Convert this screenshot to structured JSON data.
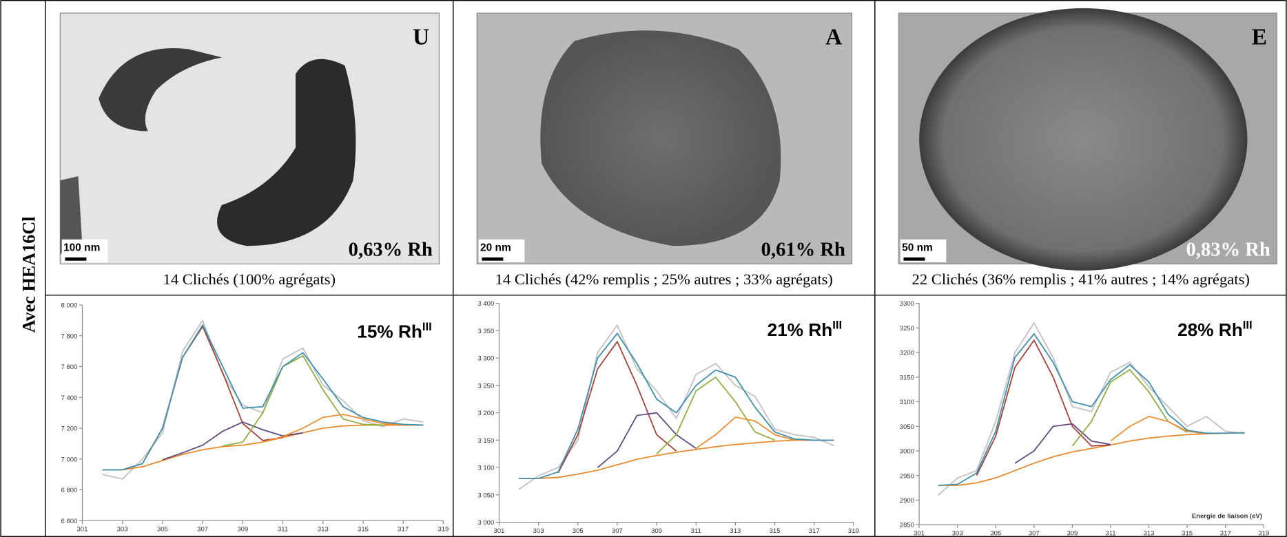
{
  "row_label": "Avec HEA16Cl",
  "panels": [
    {
      "letter": "U",
      "loading": "0,63% Rh",
      "scale_bar": "100 nm",
      "caption": "14 Clichés (100% agrégats)"
    },
    {
      "letter": "A",
      "loading": "0,61% Rh",
      "scale_bar": "20 nm",
      "caption": "14 Clichés (42% remplis ; 25% autres ; 33% agrégats)"
    },
    {
      "letter": "E",
      "loading": "0,83% Rh",
      "scale_bar": "50 nm",
      "caption": "22 Clichés (36% remplis ; 41% autres ; 14% agrégats)"
    }
  ],
  "chart_data": [
    {
      "type": "line",
      "annotation": "15% Rh",
      "annotation_sup": "III",
      "x": [
        302,
        303,
        304,
        305,
        306,
        307,
        308,
        309,
        310,
        311,
        312,
        313,
        314,
        315,
        316,
        317,
        318
      ],
      "xlim": [
        301,
        319
      ],
      "xticks": [
        301,
        303,
        305,
        307,
        309,
        311,
        313,
        315,
        317,
        319
      ],
      "ylim": [
        6600,
        8000
      ],
      "yticks": [
        {
          "value": 6600,
          "label": "6 600"
        },
        {
          "value": 6800,
          "label": "6 800"
        },
        {
          "value": 7000,
          "label": "7 000"
        },
        {
          "value": 7200,
          "label": "7 200"
        },
        {
          "value": 7400,
          "label": "7 400"
        },
        {
          "value": 7600,
          "label": "7 600"
        },
        {
          "value": 7800,
          "label": "7 800"
        },
        {
          "value": 8000,
          "label": "8 000"
        }
      ],
      "series": [
        {
          "color": "#c4c4c4",
          "values": [
            6900,
            6870,
            7000,
            7170,
            7700,
            7900,
            7550,
            7350,
            7300,
            7650,
            7720,
            7480,
            7380,
            7250,
            7210,
            7260,
            7240
          ]
        },
        {
          "color": "#e8892b",
          "values": [
            6930,
            6930,
            6950,
            6990,
            7030,
            7060,
            7080,
            7090,
            7110,
            7140,
            7170,
            7200,
            7215,
            7220,
            7220,
            7220,
            7220
          ]
        },
        {
          "color": "#a8403a",
          "values": [
            null,
            6930,
            6970,
            7200,
            7660,
            7860,
            7560,
            7230,
            7120,
            7140,
            null,
            null,
            null,
            null,
            null,
            null,
            null
          ]
        },
        {
          "color": "#5e4a80",
          "values": [
            null,
            null,
            null,
            6995,
            7040,
            7090,
            7180,
            7240,
            7190,
            7150,
            7170,
            null,
            null,
            null,
            null,
            null,
            null
          ]
        },
        {
          "color": "#8fae3e",
          "values": [
            null,
            null,
            null,
            null,
            null,
            null,
            7085,
            7110,
            7300,
            7600,
            7670,
            7450,
            7260,
            7225,
            7220,
            null,
            null
          ]
        },
        {
          "color": "#ee8f30",
          "values": [
            null,
            null,
            null,
            null,
            null,
            null,
            null,
            null,
            7110,
            7145,
            7200,
            7270,
            7290,
            7260,
            7230,
            7220,
            null
          ]
        },
        {
          "color": "#3f8fae",
          "values": [
            6930,
            6930,
            6970,
            7200,
            7660,
            7870,
            7600,
            7330,
            7340,
            7600,
            7690,
            7520,
            7340,
            7270,
            7240,
            7225,
            7220
          ]
        }
      ]
    },
    {
      "type": "line",
      "annotation": "21% Rh",
      "annotation_sup": "III",
      "x": [
        302,
        303,
        304,
        305,
        306,
        307,
        308,
        309,
        310,
        311,
        312,
        313,
        314,
        315,
        316,
        317,
        318
      ],
      "xlim": [
        301,
        319
      ],
      "xticks": [
        301,
        303,
        305,
        307,
        309,
        311,
        313,
        315,
        317,
        319
      ],
      "ylim": [
        3000,
        3400
      ],
      "yticks": [
        {
          "value": 3000,
          "label": "3 000"
        },
        {
          "value": 3050,
          "label": "3 050"
        },
        {
          "value": 3100,
          "label": "3 100"
        },
        {
          "value": 3150,
          "label": "3 150"
        },
        {
          "value": 3200,
          "label": "3 200"
        },
        {
          "value": 3250,
          "label": "3 250"
        },
        {
          "value": 3300,
          "label": "3 300"
        },
        {
          "value": 3350,
          "label": "3 350"
        },
        {
          "value": 3400,
          "label": "3 400"
        }
      ],
      "series": [
        {
          "color": "#c4c4c4",
          "values": [
            3060,
            3085,
            3100,
            3150,
            3310,
            3360,
            3280,
            3240,
            3190,
            3270,
            3290,
            3250,
            3230,
            3170,
            3160,
            3155,
            3140
          ]
        },
        {
          "color": "#e8892b",
          "values": [
            3080,
            3080,
            3082,
            3088,
            3095,
            3105,
            3115,
            3122,
            3128,
            3133,
            3138,
            3142,
            3145,
            3148,
            3150,
            3150,
            3150
          ]
        },
        {
          "color": "#a8403a",
          "values": [
            null,
            null,
            3090,
            3160,
            3280,
            3330,
            3250,
            3160,
            3130,
            null,
            null,
            null,
            null,
            null,
            null,
            null,
            null
          ]
        },
        {
          "color": "#5e4a80",
          "values": [
            null,
            null,
            null,
            null,
            3100,
            3130,
            3195,
            3200,
            3160,
            3135,
            null,
            null,
            null,
            null,
            null,
            null,
            null
          ]
        },
        {
          "color": "#8fae3e",
          "values": [
            null,
            null,
            null,
            null,
            null,
            null,
            null,
            3125,
            3160,
            3240,
            3265,
            3220,
            3165,
            3150,
            null,
            null,
            null
          ]
        },
        {
          "color": "#ee8f30",
          "values": [
            null,
            null,
            null,
            null,
            null,
            null,
            null,
            null,
            null,
            3135,
            3160,
            3192,
            3185,
            3160,
            3150,
            null,
            null
          ]
        },
        {
          "color": "#3f8fae",
          "values": [
            3080,
            3080,
            3092,
            3170,
            3300,
            3345,
            3290,
            3225,
            3200,
            3250,
            3278,
            3265,
            3210,
            3165,
            3152,
            3150,
            3150
          ]
        }
      ]
    },
    {
      "type": "line",
      "annotation": "28% Rh",
      "annotation_sup": "III",
      "x_label": "Energie de liaison (eV)",
      "x": [
        302,
        303,
        304,
        305,
        306,
        307,
        308,
        309,
        310,
        311,
        312,
        313,
        314,
        315,
        316,
        317,
        318
      ],
      "xlim": [
        301,
        319
      ],
      "xticks": [
        301,
        303,
        305,
        307,
        309,
        311,
        313,
        315,
        317,
        319
      ],
      "ylim": [
        2850,
        3300
      ],
      "yticks": [
        2850,
        2900,
        2950,
        3000,
        3050,
        3100,
        3150,
        3200,
        3250,
        3300
      ],
      "series": [
        {
          "color": "#c4c4c4",
          "values": [
            2910,
            2945,
            2960,
            3060,
            3200,
            3260,
            3190,
            3090,
            3080,
            3160,
            3180,
            3130,
            3090,
            3050,
            3070,
            3040,
            3035
          ]
        },
        {
          "color": "#e8892b",
          "values": [
            2930,
            2930,
            2935,
            2945,
            2960,
            2975,
            2988,
            2998,
            3005,
            3012,
            3020,
            3026,
            3030,
            3033,
            3035,
            3036,
            3037
          ]
        },
        {
          "color": "#a8403a",
          "values": [
            null,
            null,
            2950,
            3030,
            3170,
            3225,
            3150,
            3050,
            3010,
            3012,
            null,
            null,
            null,
            null,
            null,
            null,
            null
          ]
        },
        {
          "color": "#5e4a80",
          "values": [
            null,
            null,
            null,
            null,
            2975,
            3000,
            3050,
            3055,
            3020,
            3013,
            null,
            null,
            null,
            null,
            null,
            null,
            null
          ]
        },
        {
          "color": "#8fae3e",
          "values": [
            null,
            null,
            null,
            null,
            null,
            null,
            null,
            3010,
            3060,
            3140,
            3165,
            3120,
            3060,
            3038,
            null,
            null,
            null
          ]
        },
        {
          "color": "#ee8f30",
          "values": [
            null,
            null,
            null,
            null,
            null,
            null,
            null,
            null,
            null,
            3020,
            3050,
            3070,
            3060,
            3040,
            3035,
            null,
            null
          ]
        },
        {
          "color": "#3f8fae",
          "values": [
            2930,
            2932,
            2955,
            3040,
            3190,
            3238,
            3180,
            3100,
            3090,
            3145,
            3175,
            3140,
            3075,
            3042,
            3036,
            3036,
            3037
          ]
        }
      ]
    }
  ]
}
